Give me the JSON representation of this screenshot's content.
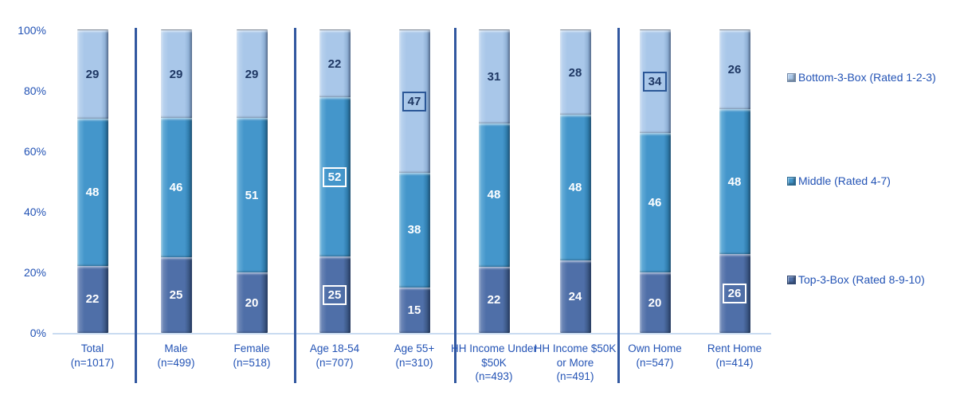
{
  "colors": {
    "text_blue": "#2353B5",
    "value_navy": "#1F3864",
    "bottom3_fill": "#A9C7E9",
    "middle_fill": "#4496CB",
    "top3_fill": "#4F6FA8",
    "divider_line": "#3258A0",
    "axis_line": "#C9DCF1"
  },
  "y_axis": {
    "ticks": [
      "100%",
      "80%",
      "60%",
      "40%",
      "20%",
      "0%"
    ]
  },
  "legend": {
    "items": [
      {
        "label": "Bottom-3-Box (Rated 1-2-3)",
        "series": "bottom3"
      },
      {
        "label": "Middle (Rated 4-7)",
        "series": "middle"
      },
      {
        "label": "Top-3-Box (Rated 8-9-10)",
        "series": "top3"
      }
    ]
  },
  "chart_data": {
    "type": "bar",
    "stacked": true,
    "ylim": [
      0,
      100
    ],
    "y_tick_labels": [
      "0%",
      "20%",
      "40%",
      "60%",
      "80%",
      "100%"
    ],
    "grid": false,
    "legend_position": "right",
    "categories": [
      "Total (n=1017)",
      "Male (n=499)",
      "Female (n=518)",
      "Age 18-54 (n=707)",
      "Age 55+ (n=310)",
      "HH Income Under $50K (n=493)",
      "HH Income $50K or More (n=491)",
      "Own Home (n=547)",
      "Rent Home (n=414)"
    ],
    "series": [
      {
        "name": "Top-3-Box (Rated 8-9-10)",
        "values": [
          22,
          25,
          20,
          25,
          15,
          22,
          24,
          20,
          26
        ]
      },
      {
        "name": "Middle (Rated 4-7)",
        "values": [
          48,
          46,
          51,
          52,
          38,
          48,
          48,
          46,
          48
        ]
      },
      {
        "name": "Bottom-3-Box (Rated 1-2-3)",
        "values": [
          29,
          29,
          29,
          22,
          47,
          31,
          28,
          34,
          26
        ]
      }
    ],
    "bars": [
      {
        "label": "Total",
        "n": "(n=1017)",
        "top3": 22,
        "middle": 48,
        "bottom3": 29,
        "boxed": {},
        "divider_after": true
      },
      {
        "label": "Male",
        "n": "(n=499)",
        "top3": 25,
        "middle": 46,
        "bottom3": 29,
        "boxed": {},
        "divider_after": false
      },
      {
        "label": "Female",
        "n": "(n=518)",
        "top3": 20,
        "middle": 51,
        "bottom3": 29,
        "boxed": {},
        "divider_after": true
      },
      {
        "label": "Age 18-54",
        "n": "(n=707)",
        "top3": 25,
        "middle": 52,
        "bottom3": 22,
        "boxed": {
          "top3": "white",
          "middle": "white"
        },
        "divider_after": false
      },
      {
        "label": "Age 55+",
        "n": "(n=310)",
        "top3": 15,
        "middle": 38,
        "bottom3": 47,
        "boxed": {
          "bottom3": "dark"
        },
        "divider_after": true
      },
      {
        "label": "HH Income Under $50K",
        "n": "(n=493)",
        "top3": 22,
        "middle": 48,
        "bottom3": 31,
        "boxed": {},
        "divider_after": false
      },
      {
        "label": "HH Income $50K or More",
        "n": "(n=491)",
        "top3": 24,
        "middle": 48,
        "bottom3": 28,
        "boxed": {},
        "divider_after": true
      },
      {
        "label": "Own Home",
        "n": "(n=547)",
        "top3": 20,
        "middle": 46,
        "bottom3": 34,
        "boxed": {
          "bottom3": "dark"
        },
        "divider_after": false
      },
      {
        "label": "Rent Home",
        "n": "(n=414)",
        "top3": 26,
        "middle": 48,
        "bottom3": 26,
        "boxed": {
          "top3": "white"
        },
        "divider_after": false
      }
    ]
  }
}
